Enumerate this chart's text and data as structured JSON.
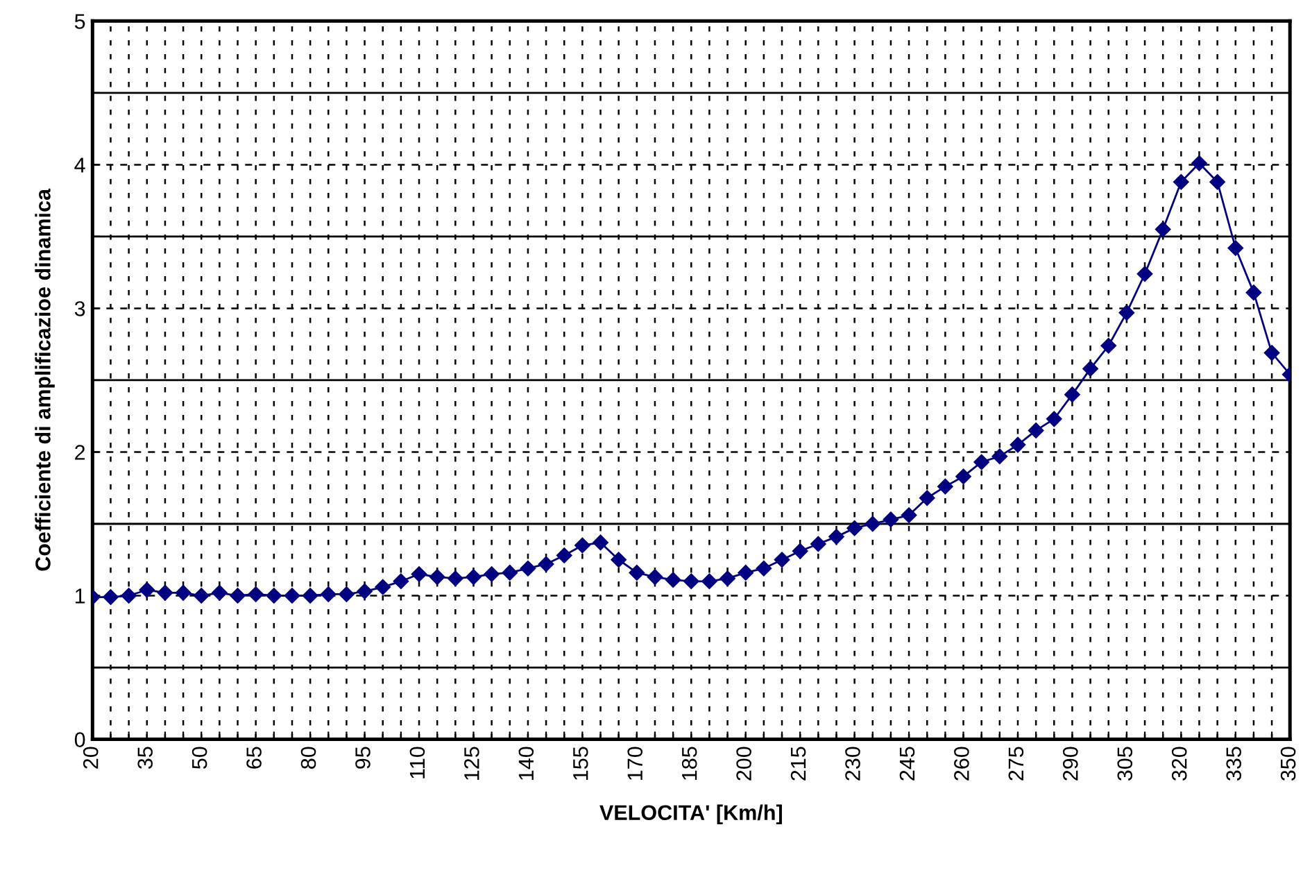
{
  "chart_data": {
    "type": "line",
    "xlabel": "VELOCITA' [Km/h]",
    "ylabel": "Coefficiente di amplificazioe dinamica",
    "x": [
      20,
      25,
      30,
      35,
      40,
      45,
      50,
      55,
      60,
      65,
      70,
      75,
      80,
      85,
      90,
      95,
      100,
      105,
      110,
      115,
      120,
      125,
      130,
      135,
      140,
      145,
      150,
      155,
      160,
      165,
      170,
      175,
      180,
      185,
      190,
      195,
      200,
      205,
      210,
      215,
      220,
      225,
      230,
      235,
      240,
      245,
      250,
      255,
      260,
      265,
      270,
      275,
      280,
      285,
      290,
      295,
      300,
      305,
      310,
      315,
      320,
      325,
      330,
      335,
      340,
      345,
      350
    ],
    "series": [
      {
        "color": "#000080",
        "values": [
          0.99,
          0.99,
          1.0,
          1.04,
          1.02,
          1.02,
          1.0,
          1.02,
          1.0,
          1.01,
          1.0,
          1.0,
          1.0,
          1.01,
          1.01,
          1.03,
          1.06,
          1.1,
          1.15,
          1.13,
          1.12,
          1.13,
          1.15,
          1.16,
          1.19,
          1.22,
          1.28,
          1.35,
          1.37,
          1.25,
          1.16,
          1.13,
          1.11,
          1.1,
          1.1,
          1.12,
          1.16,
          1.19,
          1.25,
          1.31,
          1.36,
          1.41,
          1.47,
          1.5,
          1.53,
          1.56,
          1.68,
          1.76,
          1.83,
          1.93,
          1.97,
          2.05,
          2.15,
          2.23,
          2.4,
          2.58,
          2.74,
          2.97,
          3.24,
          3.55,
          3.88,
          4.01,
          3.88,
          3.42,
          3.11,
          2.69,
          2.54
        ]
      }
    ],
    "marker": "diamond",
    "line_style": "solid",
    "grid": true,
    "xlim": [
      20,
      350
    ],
    "ylim": [
      0,
      5
    ],
    "xticks": [
      20,
      {
        "value": 25,
        "label": null
      },
      {
        "value": 30,
        "label": null
      },
      35,
      {
        "value": 40,
        "label": null
      },
      {
        "value": 45,
        "label": null
      },
      50,
      {
        "value": 55,
        "label": null
      },
      {
        "value": 60,
        "label": null
      },
      65,
      {
        "value": 70,
        "label": null
      },
      {
        "value": 75,
        "label": null
      },
      80,
      {
        "value": 85,
        "label": null
      },
      {
        "value": 90,
        "label": null
      },
      95,
      {
        "value": 100,
        "label": null
      },
      {
        "value": 105,
        "label": null
      },
      110,
      {
        "value": 115,
        "label": null
      },
      {
        "value": 120,
        "label": null
      },
      125,
      {
        "value": 130,
        "label": null
      },
      {
        "value": 135,
        "label": null
      },
      140,
      {
        "value": 145,
        "label": null
      },
      {
        "value": 150,
        "label": null
      },
      155,
      {
        "value": 160,
        "label": null
      },
      {
        "value": 165,
        "label": null
      },
      170,
      {
        "value": 175,
        "label": null
      },
      {
        "value": 180,
        "label": null
      },
      185,
      {
        "value": 190,
        "label": null
      },
      {
        "value": 195,
        "label": null
      },
      200,
      {
        "value": 205,
        "label": null
      },
      {
        "value": 210,
        "label": null
      },
      215,
      {
        "value": 220,
        "label": null
      },
      {
        "value": 225,
        "label": null
      },
      230,
      {
        "value": 235,
        "label": null
      },
      {
        "value": 240,
        "label": null
      },
      245,
      {
        "value": 250,
        "label": null
      },
      {
        "value": 255,
        "label": null
      },
      260,
      {
        "value": 265,
        "label": null
      },
      {
        "value": 270,
        "label": null
      },
      275,
      {
        "value": 280,
        "label": null
      },
      {
        "value": 285,
        "label": null
      },
      290,
      {
        "value": 295,
        "label": null
      },
      {
        "value": 300,
        "label": null
      },
      305,
      {
        "value": 310,
        "label": null
      },
      {
        "value": 315,
        "label": null
      },
      320,
      {
        "value": 325,
        "label": null
      },
      {
        "value": 330,
        "label": null
      },
      335,
      {
        "value": 340,
        "label": null
      },
      {
        "value": 345,
        "label": null
      },
      350
    ],
    "yticks": [
      0,
      {
        "value": 0.5,
        "label": null
      },
      1,
      {
        "value": 1.5,
        "label": null
      },
      2,
      {
        "value": 2.5,
        "label": null
      },
      3,
      {
        "value": 3.5,
        "label": null
      },
      4,
      {
        "value": 4.5,
        "label": null
      },
      5
    ]
  }
}
